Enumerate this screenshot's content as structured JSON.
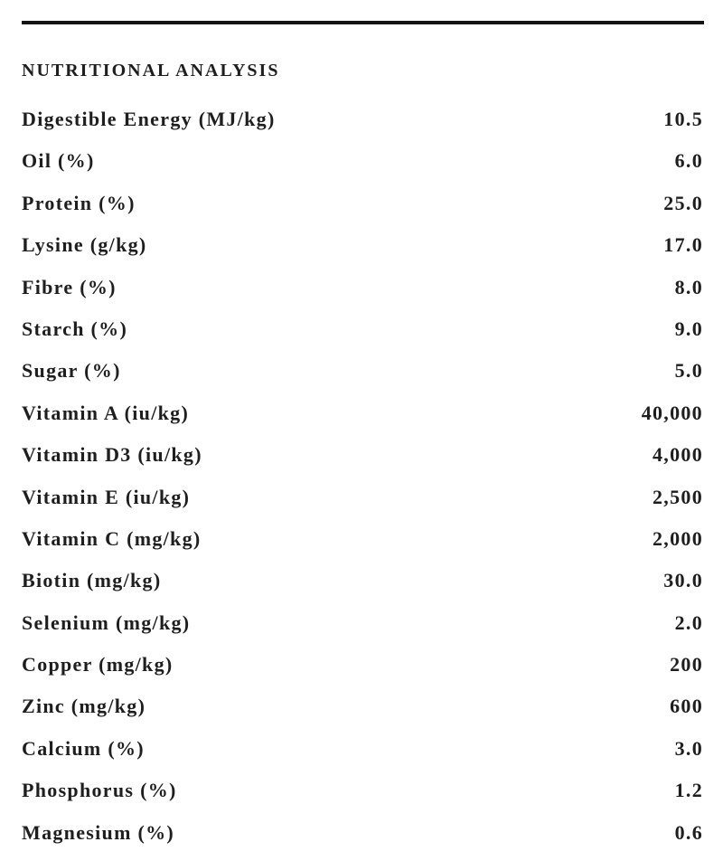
{
  "title": "NUTRITIONAL ANALYSIS",
  "table": {
    "rows": [
      [
        "Digestible Energy (MJ/kg)",
        "10.5"
      ],
      [
        "Oil (%)",
        "6.0"
      ],
      [
        "Protein (%)",
        "25.0"
      ],
      [
        "Lysine (g/kg)",
        "17.0"
      ],
      [
        "Fibre (%)",
        "8.0"
      ],
      [
        "Starch (%)",
        "9.0"
      ],
      [
        "Sugar (%)",
        "5.0"
      ],
      [
        "Vitamin A (iu/kg)",
        "40,000"
      ],
      [
        "Vitamin D3 (iu/kg)",
        "4,000"
      ],
      [
        "Vitamin E (iu/kg)",
        "2,500"
      ],
      [
        "Vitamin C (mg/kg)",
        "2,000"
      ],
      [
        "Biotin (mg/kg)",
        "30.0"
      ],
      [
        "Selenium (mg/kg)",
        "2.0"
      ],
      [
        "Copper (mg/kg)",
        "200"
      ],
      [
        "Zinc (mg/kg)",
        "600"
      ],
      [
        "Calcium (%)",
        "3.0"
      ],
      [
        "Phosphorus (%)",
        "1.2"
      ],
      [
        "Magnesium (%)",
        "0.6"
      ]
    ]
  }
}
